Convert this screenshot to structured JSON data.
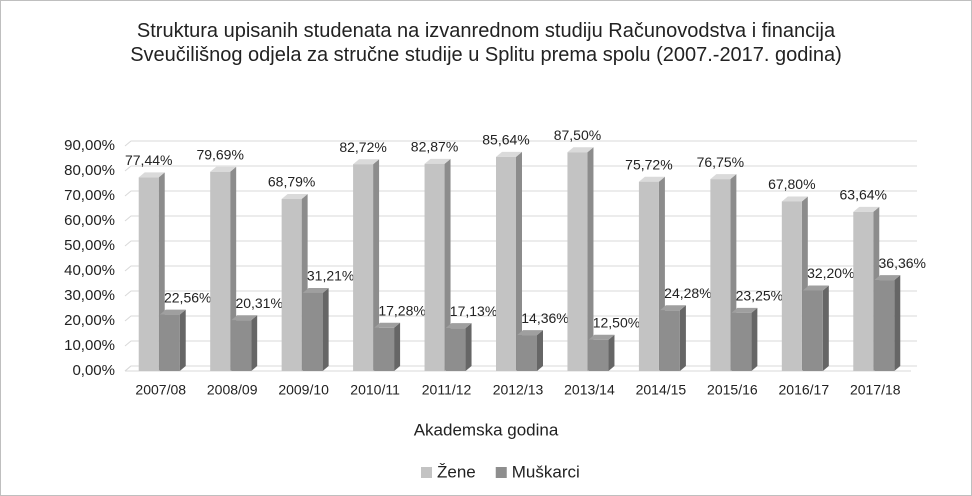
{
  "chart_data": {
    "type": "bar3d",
    "title": "Struktura upisanih studenata na izvanrednom studiju Računovodstva i financija Sveučilišnog odjela za stručne studije u Splitu prema spolu (2007.-2017. godina)",
    "x_label": "Akademska godina",
    "categories": [
      "2007/08",
      "2008/09",
      "2009/10",
      "2010/11",
      "2011/12",
      "2012/13",
      "2013/14",
      "2014/15",
      "2015/16",
      "2016/17",
      "2017/18"
    ],
    "series": [
      {
        "name": "Žene",
        "color": "#c3c3c3",
        "values": [
          77.44,
          79.69,
          68.79,
          82.72,
          82.87,
          85.64,
          87.5,
          75.72,
          76.75,
          67.8,
          63.64
        ],
        "value_labels": [
          "77,44%",
          "79,69%",
          "68,79%",
          "82,72%",
          "82,87%",
          "85,64%",
          "87,50%",
          "75,72%",
          "76,75%",
          "67,80%",
          "63,64%"
        ]
      },
      {
        "name": "Muškarci",
        "color": "#8e8e8e",
        "values": [
          22.56,
          20.31,
          31.21,
          17.28,
          17.13,
          14.36,
          12.5,
          24.28,
          23.25,
          32.2,
          36.36
        ],
        "value_labels": [
          "22,56%",
          "20,31%",
          "31,21%",
          "17,28%",
          "17,13%",
          "14,36%",
          "12,50%",
          "24,28%",
          "23,25%",
          "32,20%",
          "36,36%"
        ]
      }
    ],
    "ylim": [
      0,
      90
    ],
    "yticks": [
      {
        "value": 0,
        "label": "0,00%"
      },
      {
        "value": 10,
        "label": "10,00%"
      },
      {
        "value": 20,
        "label": "20,00%"
      },
      {
        "value": 30,
        "label": "30,00%"
      },
      {
        "value": 40,
        "label": "40,00%"
      },
      {
        "value": 50,
        "label": "50,00%"
      },
      {
        "value": 60,
        "label": "60,00%"
      },
      {
        "value": 70,
        "label": "70,00%"
      },
      {
        "value": 80,
        "label": "80,00%"
      },
      {
        "value": 90,
        "label": "90,00%"
      }
    ],
    "grid": true,
    "legend": "bottom"
  }
}
